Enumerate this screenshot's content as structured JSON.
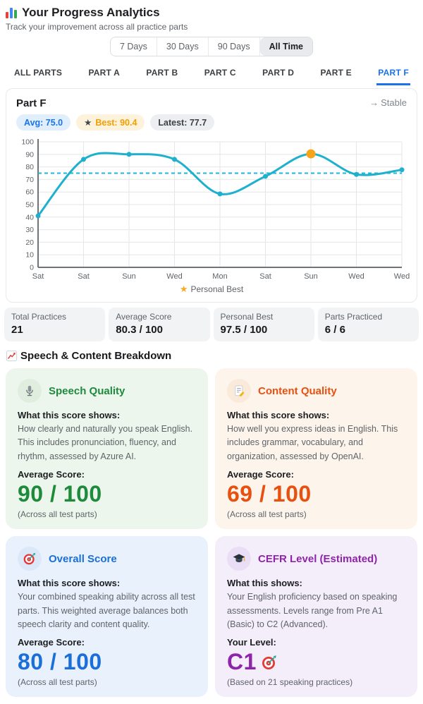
{
  "header": {
    "icon": "bar-chart",
    "title": "Your Progress Analytics",
    "subtitle": "Track your improvement across all practice parts"
  },
  "time_filters": {
    "options": [
      "7 Days",
      "30 Days",
      "90 Days",
      "All Time"
    ],
    "selected": "All Time"
  },
  "tabs": {
    "items": [
      "ALL PARTS",
      "PART A",
      "PART B",
      "PART C",
      "PART D",
      "PART E",
      "PART F"
    ],
    "selected": "PART F",
    "active_color": "#1a73e8"
  },
  "chart_card": {
    "title": "Part F",
    "trend_icon": "→",
    "trend_label": "Stable",
    "badge_avg": "Avg: 75.0",
    "badge_best_star": "★",
    "badge_best": "Best: 90.4",
    "badge_latest": "Latest: 77.7",
    "legend_star": "★",
    "legend_label": "Personal Best"
  },
  "chart_data": {
    "type": "line",
    "title": "Part F score trend",
    "x": [
      "Sat",
      "Sat",
      "Sun",
      "Wed",
      "Mon",
      "Sat",
      "Sun",
      "Wed",
      "Wed"
    ],
    "series": [
      {
        "name": "Score",
        "values": [
          41,
          86,
          90,
          86,
          58.5,
          72.5,
          90.4,
          74,
          77.7
        ]
      }
    ],
    "average_line": 75.0,
    "personal_best": {
      "index": 6,
      "value": 90.4
    },
    "ylim": [
      0,
      100
    ],
    "yticks": [
      0,
      10,
      20,
      30,
      40,
      50,
      60,
      70,
      80,
      90,
      100
    ],
    "grid": true,
    "legend_position": "bottom",
    "line_color": "#1fb0cd",
    "avg_line_color": "#1db6dd",
    "personal_best_color": "#f7a418",
    "grid_color": "#e6e6e6",
    "axis_color": "#6f7478",
    "tick_color": "#5f6368"
  },
  "stats": [
    {
      "label": "Total Practices",
      "value": "21"
    },
    {
      "label": "Average Score",
      "value": "80.3 / 100"
    },
    {
      "label": "Personal Best",
      "value": "97.5 / 100"
    },
    {
      "label": "Parts Practiced",
      "value": "6 / 6"
    }
  ],
  "breakdown": {
    "section_icon": "chart-up",
    "section_title": "Speech & Content Breakdown",
    "cards": [
      {
        "icon": "microphone",
        "title": "Speech Quality",
        "heading": "What this score shows:",
        "description": "How clearly and naturally you speak English. This includes pronunciation, fluency, and rhythm, assessed by Azure AI.",
        "score_label": "Average Score:",
        "score": "90 / 100",
        "footnote": "(Across all test parts)",
        "accent": "#1d8a3c",
        "bg": "#edf6ed",
        "icon_bg": "#dfeedf"
      },
      {
        "icon": "memo",
        "title": "Content Quality",
        "heading": "What this score shows:",
        "description": "How well you express ideas in English. This includes grammar, vocabulary, and organization, assessed by OpenAI.",
        "score_label": "Average Score:",
        "score": "69 / 100",
        "footnote": "(Across all test parts)",
        "accent": "#e8500f",
        "bg": "#fdf5ec",
        "icon_bg": "#faeada"
      },
      {
        "icon": "target",
        "title": "Overall Score",
        "heading": "What this score shows:",
        "description": "Your combined speaking ability across all test parts. This weighted average balances both speech clarity and content quality.",
        "score_label": "Average Score:",
        "score": "80 / 100",
        "footnote": "(Across all test parts)",
        "accent": "#1a6fd8",
        "bg": "#e9f1fc",
        "icon_bg": "#dbe8fa"
      },
      {
        "icon": "graduation-cap",
        "title": "CEFR Level (Estimated)",
        "heading": "What this shows:",
        "description": "Your English proficiency based on speaking assessments. Levels range from Pre A1 (Basic) to C2 (Advanced).",
        "score_label": "Your Level:",
        "score": "C1",
        "score_icon": "target",
        "footnote": "(Based on 21 speaking practices)",
        "accent": "#8e24aa",
        "bg": "#f4eefa",
        "icon_bg": "#eadef6"
      }
    ]
  }
}
